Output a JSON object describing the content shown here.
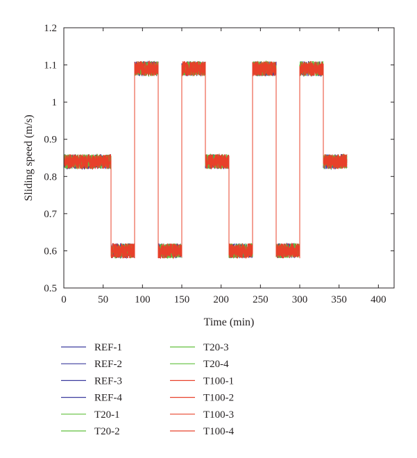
{
  "chart_data": {
    "type": "line",
    "title": "",
    "xlabel": "Time (min)",
    "ylabel": "Sliding speed (m/s)",
    "xlim": [
      0,
      420
    ],
    "ylim": [
      0.5,
      1.2
    ],
    "xticks": [
      0,
      50,
      100,
      150,
      200,
      250,
      300,
      350,
      400
    ],
    "yticks": [
      0.5,
      0.6,
      0.7,
      0.8,
      0.9,
      1.0,
      1.1,
      1.2
    ],
    "xtick_labels": [
      "0",
      "50",
      "100",
      "150",
      "200",
      "250",
      "300",
      "350",
      "400"
    ],
    "ytick_labels": [
      "0.5",
      "0.6",
      "0.7",
      "0.8",
      "0.9",
      "1",
      "1.1",
      "1.2"
    ],
    "grid": false,
    "legend_position": "below",
    "profile": {
      "description_of_steps": "time_start, time_end, mean sliding speed",
      "steps": [
        [
          0,
          60,
          0.84
        ],
        [
          60,
          90,
          0.6
        ],
        [
          90,
          120,
          1.09
        ],
        [
          120,
          150,
          0.6
        ],
        [
          150,
          180,
          1.09
        ],
        [
          180,
          210,
          0.84
        ],
        [
          210,
          240,
          0.6
        ],
        [
          240,
          270,
          1.09
        ],
        [
          270,
          300,
          0.6
        ],
        [
          300,
          330,
          1.09
        ],
        [
          330,
          360,
          0.84
        ]
      ],
      "noise_amplitude": 0.02
    },
    "series": [
      {
        "name": "REF-1",
        "color": "#3a3a9e"
      },
      {
        "name": "REF-2",
        "color": "#3a3a9e"
      },
      {
        "name": "REF-3",
        "color": "#3a3a9e"
      },
      {
        "name": "REF-4",
        "color": "#3a3a9e"
      },
      {
        "name": "T20-1",
        "color": "#5fbf3a"
      },
      {
        "name": "T20-2",
        "color": "#5fbf3a"
      },
      {
        "name": "T20-3",
        "color": "#5fbf3a"
      },
      {
        "name": "T20-4",
        "color": "#5fbf3a"
      },
      {
        "name": "T100-1",
        "color": "#e8402a"
      },
      {
        "name": "T100-2",
        "color": "#e8402a"
      },
      {
        "name": "T100-3",
        "color": "#e8402a"
      },
      {
        "name": "T100-4",
        "color": "#e8402a"
      }
    ]
  }
}
